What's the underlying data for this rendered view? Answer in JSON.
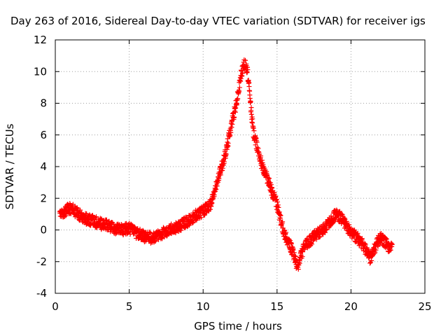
{
  "chart_data": {
    "type": "scatter",
    "title": "Day 263 of 2016, Sidereal Day-to-day VTEC variation (SDTVAR) for receiver igs",
    "xlabel": "GPS time / hours",
    "ylabel": "SDTVAR / TECUs",
    "xlim": [
      0,
      25
    ],
    "ylim": [
      -4,
      12
    ],
    "x_ticks": [
      0,
      5,
      10,
      15,
      20,
      25
    ],
    "y_ticks": [
      -4,
      -2,
      0,
      2,
      4,
      6,
      8,
      10,
      12
    ],
    "grid": true,
    "marker": "+",
    "color": "#ff0000",
    "profile_x": [
      0.3,
      0.6,
      1.0,
      1.3,
      1.7,
      2.0,
      2.5,
      3.0,
      3.5,
      4.0,
      4.5,
      5.0,
      5.5,
      6.0,
      6.5,
      7.0,
      7.5,
      8.0,
      8.5,
      9.0,
      9.5,
      10.0,
      10.5,
      10.8,
      11.0,
      11.2,
      11.4,
      11.6,
      11.8,
      12.0,
      12.2,
      12.4,
      12.6,
      12.8,
      13.0,
      13.2,
      13.4,
      13.6,
      13.8,
      14.0,
      14.3,
      14.6,
      15.0,
      15.3,
      15.6,
      15.9,
      16.2,
      16.4,
      16.6,
      16.9,
      17.2,
      17.5,
      17.8,
      18.1,
      18.4,
      18.7,
      19.0,
      19.3,
      19.6,
      19.9,
      20.2,
      20.5,
      20.8,
      21.1,
      21.3,
      21.5,
      21.7,
      22.0,
      22.3,
      22.5,
      22.8
    ],
    "profile_y": [
      1.0,
      1.1,
      1.4,
      1.2,
      0.9,
      0.7,
      0.6,
      0.4,
      0.3,
      0.1,
      0.0,
      0.1,
      -0.2,
      -0.4,
      -0.5,
      -0.3,
      -0.1,
      0.1,
      0.3,
      0.6,
      0.9,
      1.2,
      1.6,
      2.5,
      3.2,
      3.8,
      4.4,
      5.2,
      6.2,
      7.0,
      7.8,
      8.8,
      10.0,
      10.5,
      10.0,
      8.0,
      6.2,
      5.4,
      4.8,
      4.0,
      3.4,
      2.6,
      1.6,
      0.4,
      -0.5,
      -1.0,
      -1.8,
      -2.4,
      -1.6,
      -1.0,
      -0.7,
      -0.4,
      -0.2,
      0.0,
      0.3,
      0.7,
      1.0,
      0.8,
      0.4,
      0.0,
      -0.3,
      -0.6,
      -0.9,
      -1.4,
      -1.8,
      -1.4,
      -0.9,
      -0.5,
      -0.8,
      -1.0,
      -1.2
    ],
    "noise": 0.35
  }
}
